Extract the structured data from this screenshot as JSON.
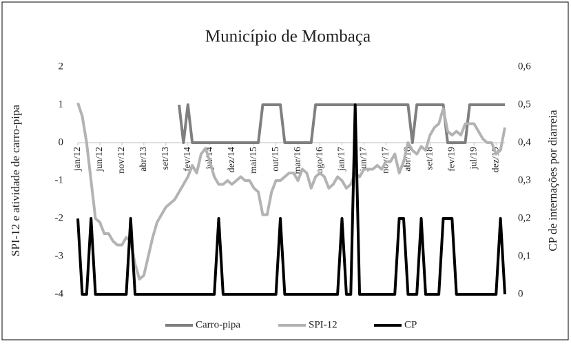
{
  "chart_data": {
    "type": "line",
    "title": "Município de Mombaça",
    "y_label": "SPI-12 e atividade de carro-pipa",
    "y2_label": "CP de internações por diarreia",
    "categories": [
      "jan/12",
      null,
      null,
      null,
      null,
      "jun/12",
      null,
      null,
      null,
      null,
      "nov/12",
      null,
      null,
      null,
      null,
      "abr/13",
      null,
      null,
      null,
      null,
      "set/13",
      null,
      null,
      null,
      null,
      "fev/14",
      null,
      null,
      null,
      null,
      "jul/14",
      null,
      null,
      null,
      null,
      "dez/14",
      null,
      null,
      null,
      null,
      "mai/15",
      null,
      null,
      null,
      null,
      "out/15",
      null,
      null,
      null,
      null,
      "mar/16",
      null,
      null,
      null,
      null,
      "ago/16",
      null,
      null,
      null,
      null,
      "jan/17",
      null,
      null,
      null,
      null,
      "jun/17",
      null,
      null,
      null,
      null,
      "nov/17",
      null,
      null,
      null,
      null,
      "abr/18",
      null,
      null,
      null,
      null,
      "set/18",
      null,
      null,
      null,
      null,
      "fev/19",
      null,
      null,
      null,
      null,
      "jul/19",
      null,
      null,
      null,
      null,
      "dez/19",
      null,
      null
    ],
    "series": [
      {
        "name": "Carro-pipa",
        "color": "#7f7f7f",
        "values": [
          null,
          null,
          null,
          null,
          null,
          null,
          null,
          null,
          null,
          null,
          null,
          null,
          null,
          null,
          null,
          null,
          null,
          null,
          null,
          null,
          null,
          null,
          null,
          1,
          0,
          1,
          0,
          0,
          0,
          0,
          0,
          0,
          0,
          0,
          0,
          0,
          0,
          0,
          0,
          0,
          0,
          0,
          1,
          1,
          1,
          1,
          1,
          0,
          0,
          0,
          0,
          0,
          0,
          0,
          1,
          1,
          1,
          1,
          1,
          1,
          1,
          1,
          1,
          1,
          1,
          1,
          1,
          1,
          1,
          1,
          1,
          1,
          1,
          1,
          1,
          1,
          0,
          1,
          1,
          1,
          1,
          1,
          1,
          1,
          0,
          0,
          0,
          0,
          0,
          1,
          1,
          1,
          1,
          1,
          1,
          1,
          1,
          1
        ]
      },
      {
        "name": "SPI-12",
        "color": "#b3b3b3",
        "values": [
          1.05,
          0.7,
          0,
          -1,
          -2,
          -2.1,
          -2.4,
          -2.4,
          -2.6,
          -2.7,
          -2.7,
          -2.5,
          -2.6,
          -3.2,
          -3.6,
          -3.5,
          -3,
          -2.5,
          -2.1,
          -1.9,
          -1.7,
          -1.6,
          -1.5,
          -1.3,
          -1.1,
          -0.9,
          -0.6,
          -0.8,
          -0.3,
          -0.15,
          -0.5,
          -0.9,
          -1.1,
          -1.1,
          -1,
          -1.1,
          -1,
          -0.9,
          -1,
          -1,
          -1.2,
          -1.3,
          -1.9,
          -1.9,
          -1.3,
          -1,
          -1,
          -0.9,
          -0.8,
          -0.8,
          -1,
          -0.7,
          -0.8,
          -1.2,
          -0.9,
          -0.8,
          -0.9,
          -1.2,
          -1.1,
          -0.9,
          -1,
          -1.2,
          -1.1,
          -0.8,
          -0.9,
          -0.7,
          -0.7,
          -0.7,
          -0.6,
          -0.7,
          -0.5,
          -0.5,
          -0.3,
          -0.8,
          -0.5,
          0,
          -0.2,
          -0.3,
          -0.1,
          -0.2,
          0.2,
          0.4,
          0.5,
          0.9,
          0.3,
          0.2,
          0.3,
          0.2,
          0.5,
          0.5,
          0.5,
          0.3,
          0.1,
          0,
          0,
          -0.3,
          -0.2,
          0.4
        ]
      },
      {
        "name": "CP",
        "color": "#000000",
        "axis": "y2",
        "values": [
          0.2,
          0,
          0,
          0.2,
          0,
          0,
          0,
          0,
          0,
          0,
          0,
          0,
          0.2,
          0,
          0,
          0,
          0,
          0,
          0,
          0,
          0,
          0,
          0,
          0,
          0,
          0,
          0,
          0,
          0,
          0,
          0,
          0,
          0.2,
          0,
          0,
          0,
          0,
          0,
          0,
          0,
          0,
          0,
          0,
          0,
          0,
          0,
          0.2,
          0,
          0,
          0,
          0,
          0,
          0,
          0,
          0,
          0,
          0,
          0,
          0,
          0,
          0.2,
          0,
          0,
          0.5,
          0,
          0,
          0,
          0,
          0,
          0,
          0,
          0,
          0,
          0.2,
          0.2,
          0,
          0,
          0,
          0.2,
          0,
          0,
          0,
          0,
          0.2,
          0.2,
          0.2,
          0,
          0,
          0,
          0,
          0,
          0,
          0,
          0,
          0,
          0,
          0.2,
          0
        ]
      }
    ],
    "ylim": [
      -4,
      2
    ],
    "yticks": [
      -4,
      -3,
      -2,
      -1,
      0,
      1,
      2
    ],
    "y2lim": [
      0,
      0.6
    ],
    "y2ticks": [
      0,
      {
        "value": 0.1,
        "label": "0,1"
      },
      {
        "value": 0.2,
        "label": "0,2"
      },
      {
        "value": 0.3,
        "label": "0,3"
      },
      {
        "value": 0.4,
        "label": "0,4"
      },
      {
        "value": 0.5,
        "label": "0,5"
      },
      {
        "value": 0.6,
        "label": "0,6"
      }
    ],
    "legend": "bottom"
  }
}
